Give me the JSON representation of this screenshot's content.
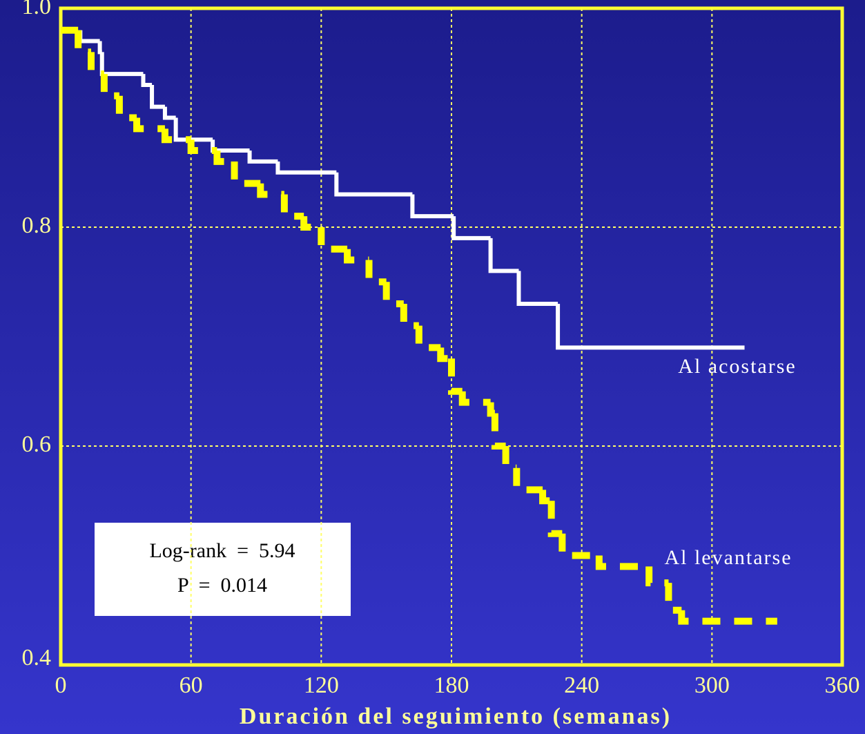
{
  "chart_data": {
    "type": "step",
    "xlabel": "Duración del seguimiento (semanas)",
    "xlim": [
      0,
      360
    ],
    "xticks": [
      0,
      60,
      120,
      180,
      240,
      300,
      360
    ],
    "ylim": [
      0.4,
      1
    ],
    "yticks": [
      0.4,
      0.6,
      0.8,
      {
        "value": 1,
        "label": "1.0"
      }
    ],
    "grid": true,
    "series": [
      {
        "name": "Al acostarse",
        "color": "#ffffff",
        "dashed": false,
        "x": [
          9,
          9,
          18,
          19,
          38,
          42,
          48,
          53,
          70,
          87,
          100,
          127,
          162,
          181,
          198,
          211,
          229,
          315
        ],
        "values": [
          0.98,
          0.97,
          0.96,
          0.94,
          0.93,
          0.91,
          0.9,
          0.88,
          0.87,
          0.86,
          0.85,
          0.83,
          0.81,
          0.79,
          0.76,
          0.73,
          0.69,
          0.69
        ]
      },
      {
        "name": "Al levantarse",
        "color": "#ffff00",
        "dashed": true,
        "x": [
          0,
          8,
          14,
          20,
          27,
          35,
          48,
          60,
          72,
          80,
          92,
          103,
          112,
          120,
          132,
          142,
          150,
          158,
          165,
          175,
          180,
          185,
          198,
          200,
          205,
          210,
          222,
          226,
          231,
          248,
          271,
          280,
          286,
          330
        ],
        "values": [
          0.98,
          0.96,
          0.94,
          0.92,
          0.9,
          0.89,
          0.88,
          0.87,
          0.86,
          0.84,
          0.83,
          0.81,
          0.8,
          0.78,
          0.77,
          0.75,
          0.73,
          0.71,
          0.69,
          0.68,
          0.65,
          0.64,
          0.63,
          0.6,
          0.58,
          0.56,
          0.55,
          0.52,
          0.5,
          0.49,
          0.475,
          0.45,
          0.44,
          0.44
        ]
      }
    ],
    "annotations": [
      "Log-rank  =  5.94",
      "P  =  0.014"
    ]
  }
}
